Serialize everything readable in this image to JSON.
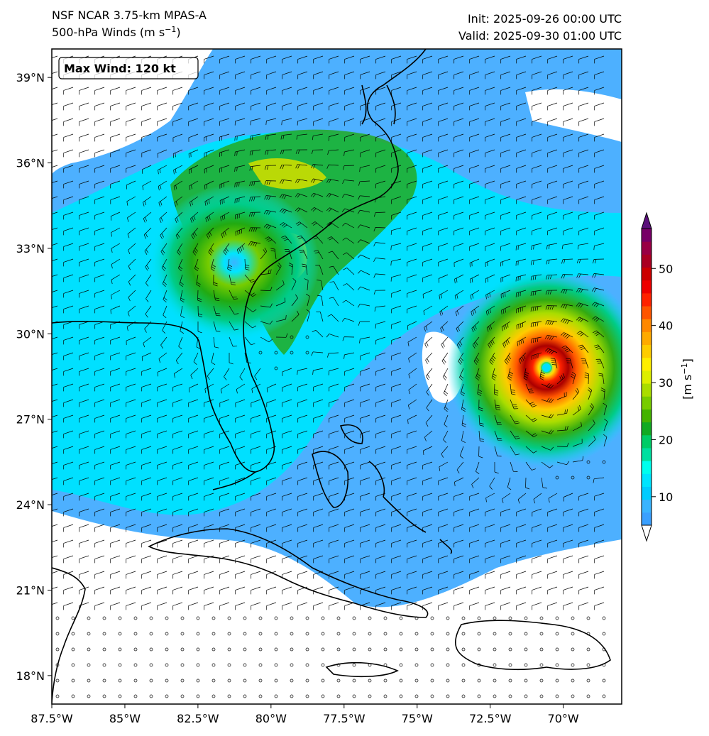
{
  "header": {
    "model_title": "NSF NCAR 3.75-km MPAS-A",
    "field_title": "500-hPa Winds (m s",
    "field_title_exp": "−1",
    "field_title_close": ")",
    "init": "Init: 2025-09-26 00:00 UTC",
    "valid": "Valid: 2025-09-30 01:00 UTC"
  },
  "annotation": {
    "max_wind": "Max Wind: 120 kt"
  },
  "map": {
    "lon_range": [
      -87.5,
      -68.0
    ],
    "lat_range": [
      17.0,
      40.0
    ],
    "lat_ticks": [
      {
        "value": 39,
        "label": "39°N"
      },
      {
        "value": 36,
        "label": "36°N"
      },
      {
        "value": 33,
        "label": "33°N"
      },
      {
        "value": 30,
        "label": "30°N"
      },
      {
        "value": 27,
        "label": "27°N"
      },
      {
        "value": 24,
        "label": "24°N"
      },
      {
        "value": 21,
        "label": "21°N"
      },
      {
        "value": 18,
        "label": "18°N"
      }
    ],
    "lon_ticks": [
      {
        "value": -87.5,
        "label": "87.5°W"
      },
      {
        "value": -85,
        "label": "85°W"
      },
      {
        "value": -82.5,
        "label": "82.5°W"
      },
      {
        "value": -80,
        "label": "80°W"
      },
      {
        "value": -77.5,
        "label": "77.5°W"
      },
      {
        "value": -75,
        "label": "75°W"
      },
      {
        "value": -72.5,
        "label": "72.5°W"
      },
      {
        "value": -70,
        "label": "70°W"
      }
    ],
    "features": {
      "hurricane_center": {
        "lon": -70.6,
        "lat": 28.8
      },
      "low_center": {
        "lon": -80.5,
        "lat": 32.8
      }
    }
  },
  "colorbar": {
    "label": "[m s",
    "label_exp": "−1",
    "label_close": "]",
    "min": 5,
    "max": 57,
    "ticks": [
      {
        "value": 10,
        "label": "10"
      },
      {
        "value": 20,
        "label": "20"
      },
      {
        "value": 30,
        "label": "30"
      },
      {
        "value": 40,
        "label": "40"
      },
      {
        "value": 50,
        "label": "50"
      }
    ],
    "colors": [
      "#3aa0ff",
      "#3ab4ff",
      "#00ccff",
      "#00e5ff",
      "#00ffee",
      "#00e0a0",
      "#00cc66",
      "#11aa22",
      "#44b300",
      "#77cc00",
      "#aadd00",
      "#ddee00",
      "#ffee00",
      "#ffcc00",
      "#ffaa00",
      "#ff8800",
      "#ff5500",
      "#ff2200",
      "#ee0000",
      "#cc0000",
      "#aa0022",
      "#990044",
      "#770066"
    ],
    "under_color": "#ffffff",
    "over_color": "#5a0f7a"
  },
  "colors": {
    "land_line": "#000000",
    "barb": "#000000"
  }
}
